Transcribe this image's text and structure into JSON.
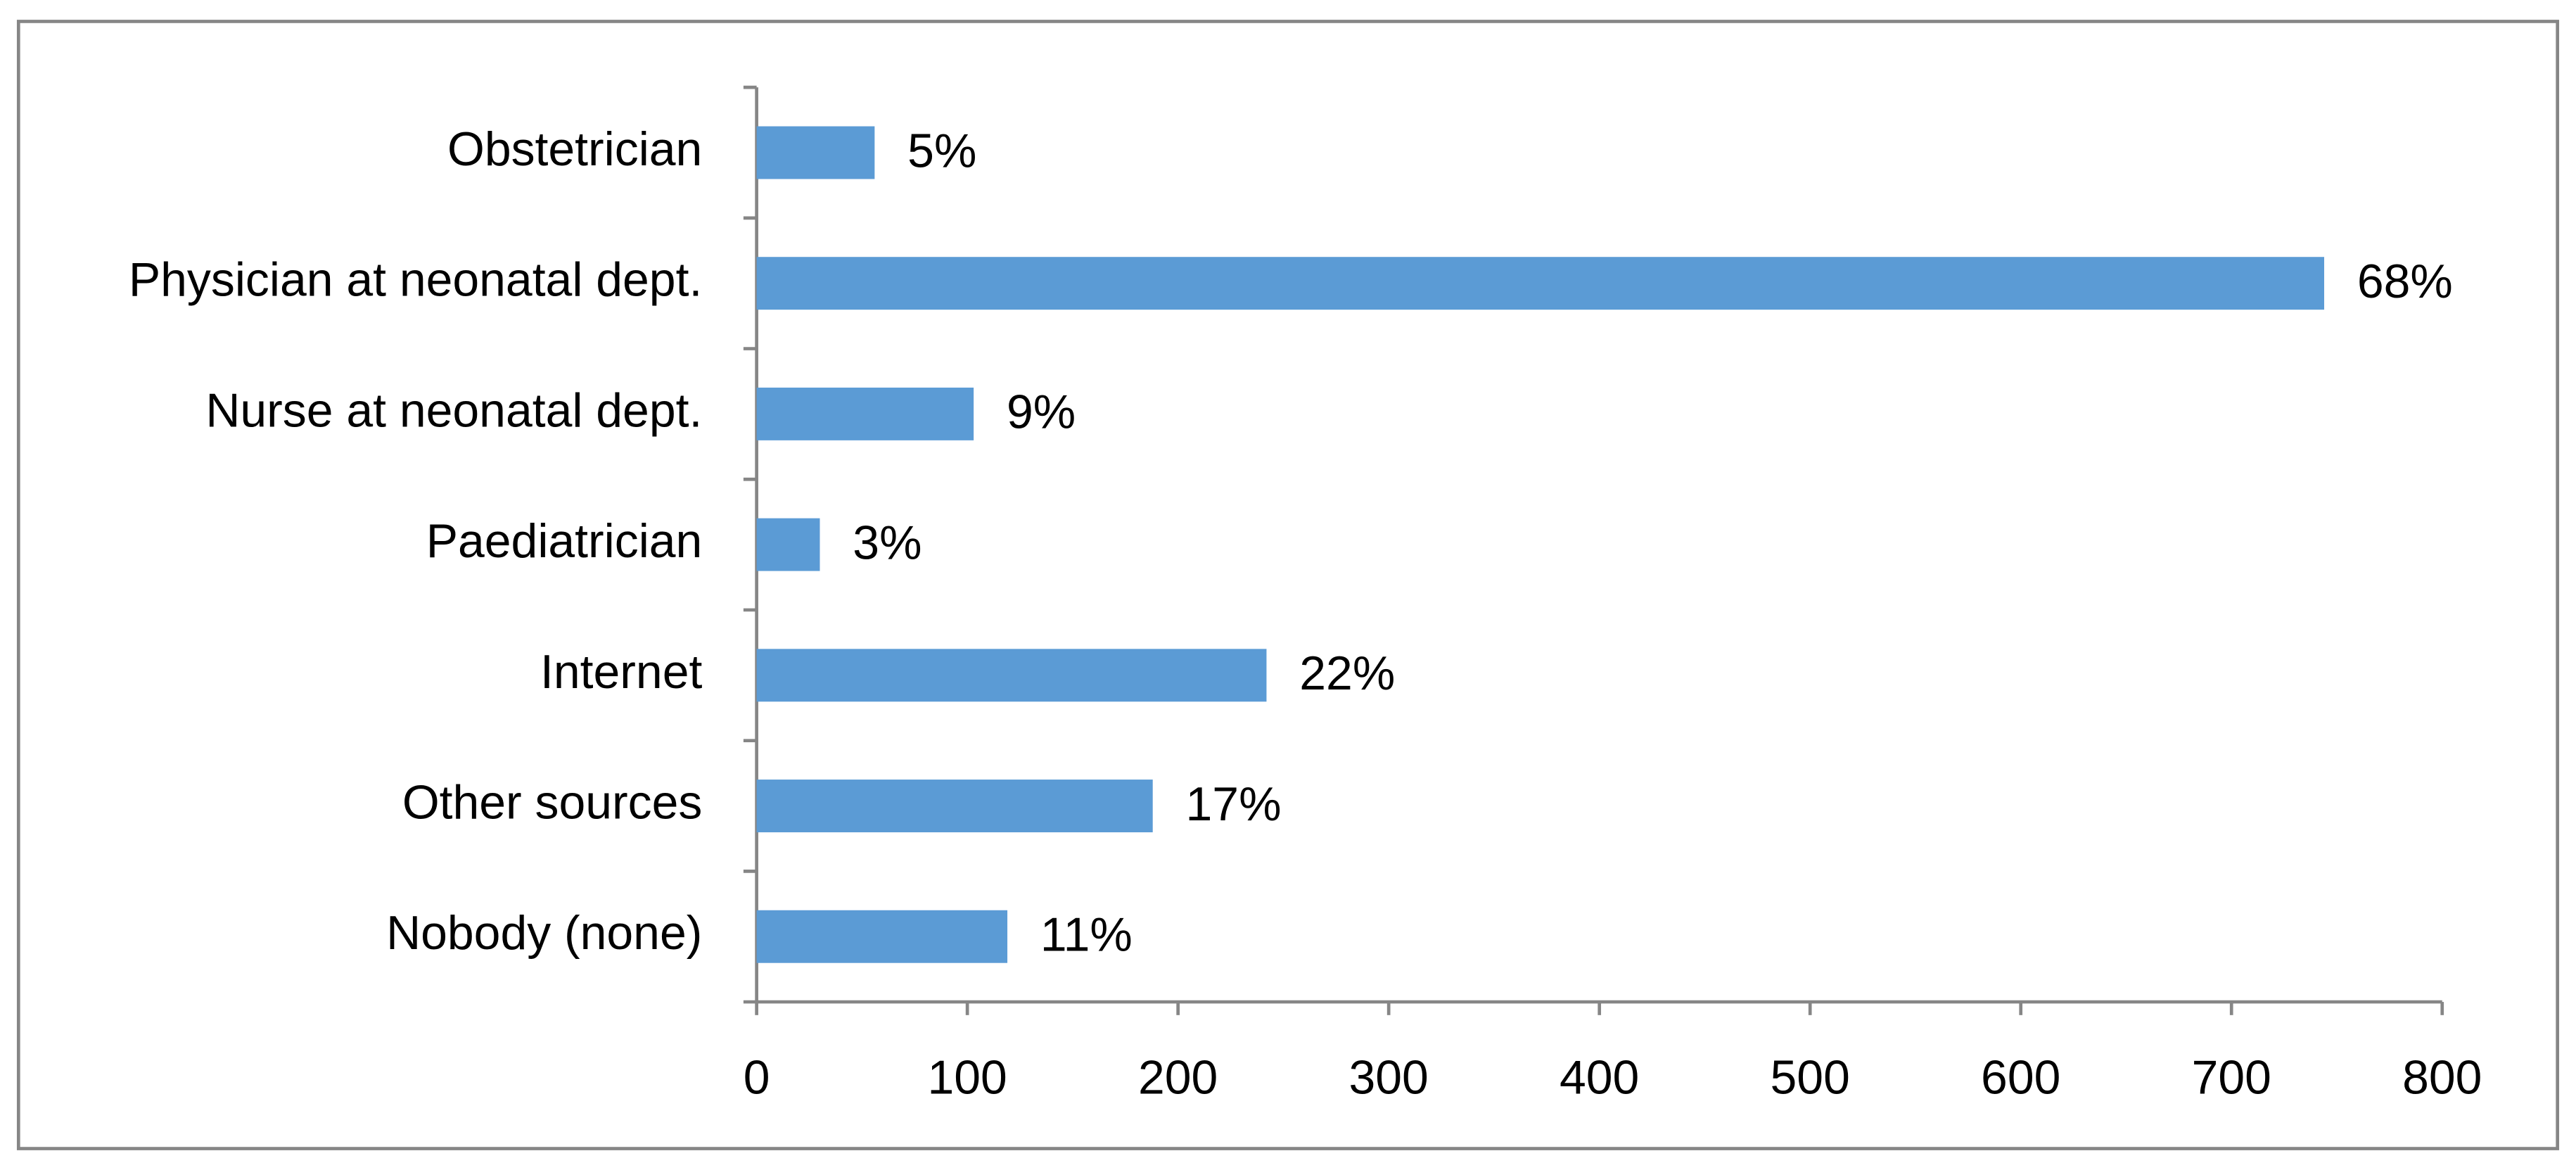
{
  "chart_data": {
    "type": "barh",
    "categories": [
      "Obstetrician",
      "Physician at neonatal dept.",
      "Nurse at neonatal dept.",
      "Paediatrician",
      "Internet",
      "Other sources",
      "Nobody (none)"
    ],
    "values": [
      56,
      744,
      103,
      30,
      242,
      188,
      119
    ],
    "percent_labels": [
      "5%",
      "68%",
      "9%",
      "3%",
      "22%",
      "17%",
      "11%"
    ],
    "color": "#5b9bd5",
    "xlim": [
      0,
      800
    ],
    "xticks": [
      0,
      100,
      200,
      300,
      400,
      500,
      600,
      700,
      800
    ],
    "grid": false
  }
}
